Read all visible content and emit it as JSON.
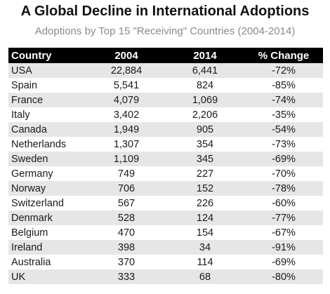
{
  "chart_data": {
    "type": "table",
    "title": "A Global Decline in International Adoptions",
    "subtitle": "Adoptions by Top 15 \"Receiving\" Countries (2004-2014)",
    "columns": [
      "Country",
      "2004",
      "2014",
      "% Change"
    ],
    "rows": [
      [
        "USA",
        "22,884",
        "6,441",
        "-72%"
      ],
      [
        "Spain",
        "5,541",
        "824",
        "-85%"
      ],
      [
        "France",
        "4,079",
        "1,069",
        "-74%"
      ],
      [
        "Italy",
        "3,402",
        "2,206",
        "-35%"
      ],
      [
        "Canada",
        "1,949",
        "905",
        "-54%"
      ],
      [
        "Netherlands",
        "1,307",
        "354",
        "-73%"
      ],
      [
        "Sweden",
        "1,109",
        "345",
        "-69%"
      ],
      [
        "Germany",
        "749",
        "227",
        "-70%"
      ],
      [
        "Norway",
        "706",
        "152",
        "-78%"
      ],
      [
        "Switzerland",
        "567",
        "226",
        "-60%"
      ],
      [
        "Denmark",
        "528",
        "124",
        "-77%"
      ],
      [
        "Belgium",
        "470",
        "154",
        "-67%"
      ],
      [
        "Ireland",
        "398",
        "34",
        "-91%"
      ],
      [
        "Australia",
        "370",
        "114",
        "-69%"
      ],
      [
        "UK",
        "333",
        "68",
        "-80%"
      ]
    ],
    "colors": {
      "header_bg": "#000000",
      "header_text": "#ffffff",
      "stripe": "#e6e6e6",
      "subtitle": "#8a8a8a"
    }
  }
}
